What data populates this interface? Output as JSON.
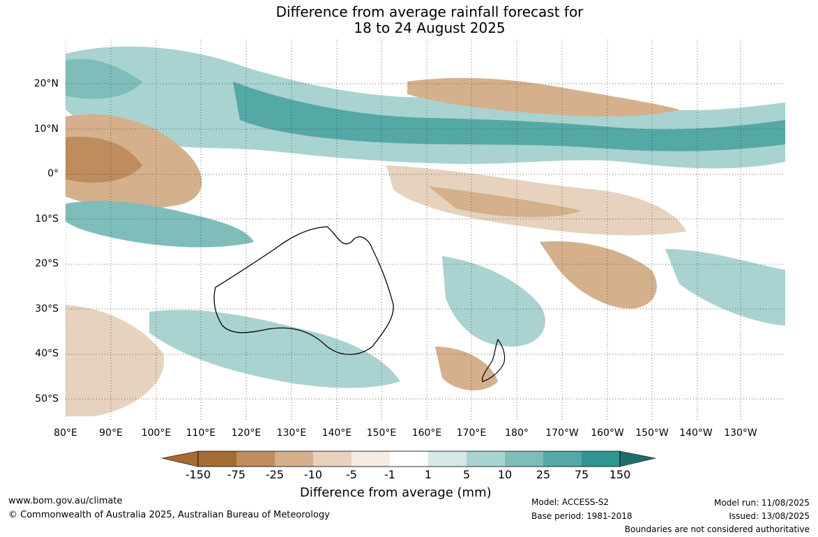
{
  "title": {
    "line1": "Difference from average rainfall forecast for",
    "line2": "18 to 24 August 2025"
  },
  "map": {
    "lat_labels": [
      "20°N",
      "10°N",
      "0°",
      "10°S",
      "20°S",
      "30°S",
      "40°S",
      "50°S"
    ],
    "lon_labels": [
      "80°E",
      "90°E",
      "100°E",
      "110°E",
      "120°E",
      "130°E",
      "140°E",
      "150°E",
      "160°E",
      "170°E",
      "180°",
      "170°W",
      "160°W",
      "150°W",
      "140°W",
      "130°W"
    ]
  },
  "legend": {
    "title": "Difference from average (mm)",
    "labels": [
      "-150",
      "-75",
      "-25",
      "-10",
      "-5",
      "-1",
      "1",
      "5",
      "10",
      "25",
      "75",
      "150"
    ],
    "colors": [
      "#a66a33",
      "#bf8c5e",
      "#d4b08d",
      "#e6d2bd",
      "#f5ebe3",
      "#ffffff",
      "#d4e9e7",
      "#a9d3d0",
      "#7fbdba",
      "#54a8a5",
      "#2e9591",
      "#1f6e6b"
    ]
  },
  "footer": {
    "url": "www.bom.gov.au/climate",
    "copyright": "© Commonwealth of Australia 2025, Australian Bureau of Meteorology",
    "model": "Model: ACCESS-S2",
    "base_period": "Base period: 1981-2018",
    "model_run": "Model run: 11/08/2025",
    "issued": "Issued: 13/08/2025",
    "disclaimer": "Boundaries are not considered authoritative"
  }
}
